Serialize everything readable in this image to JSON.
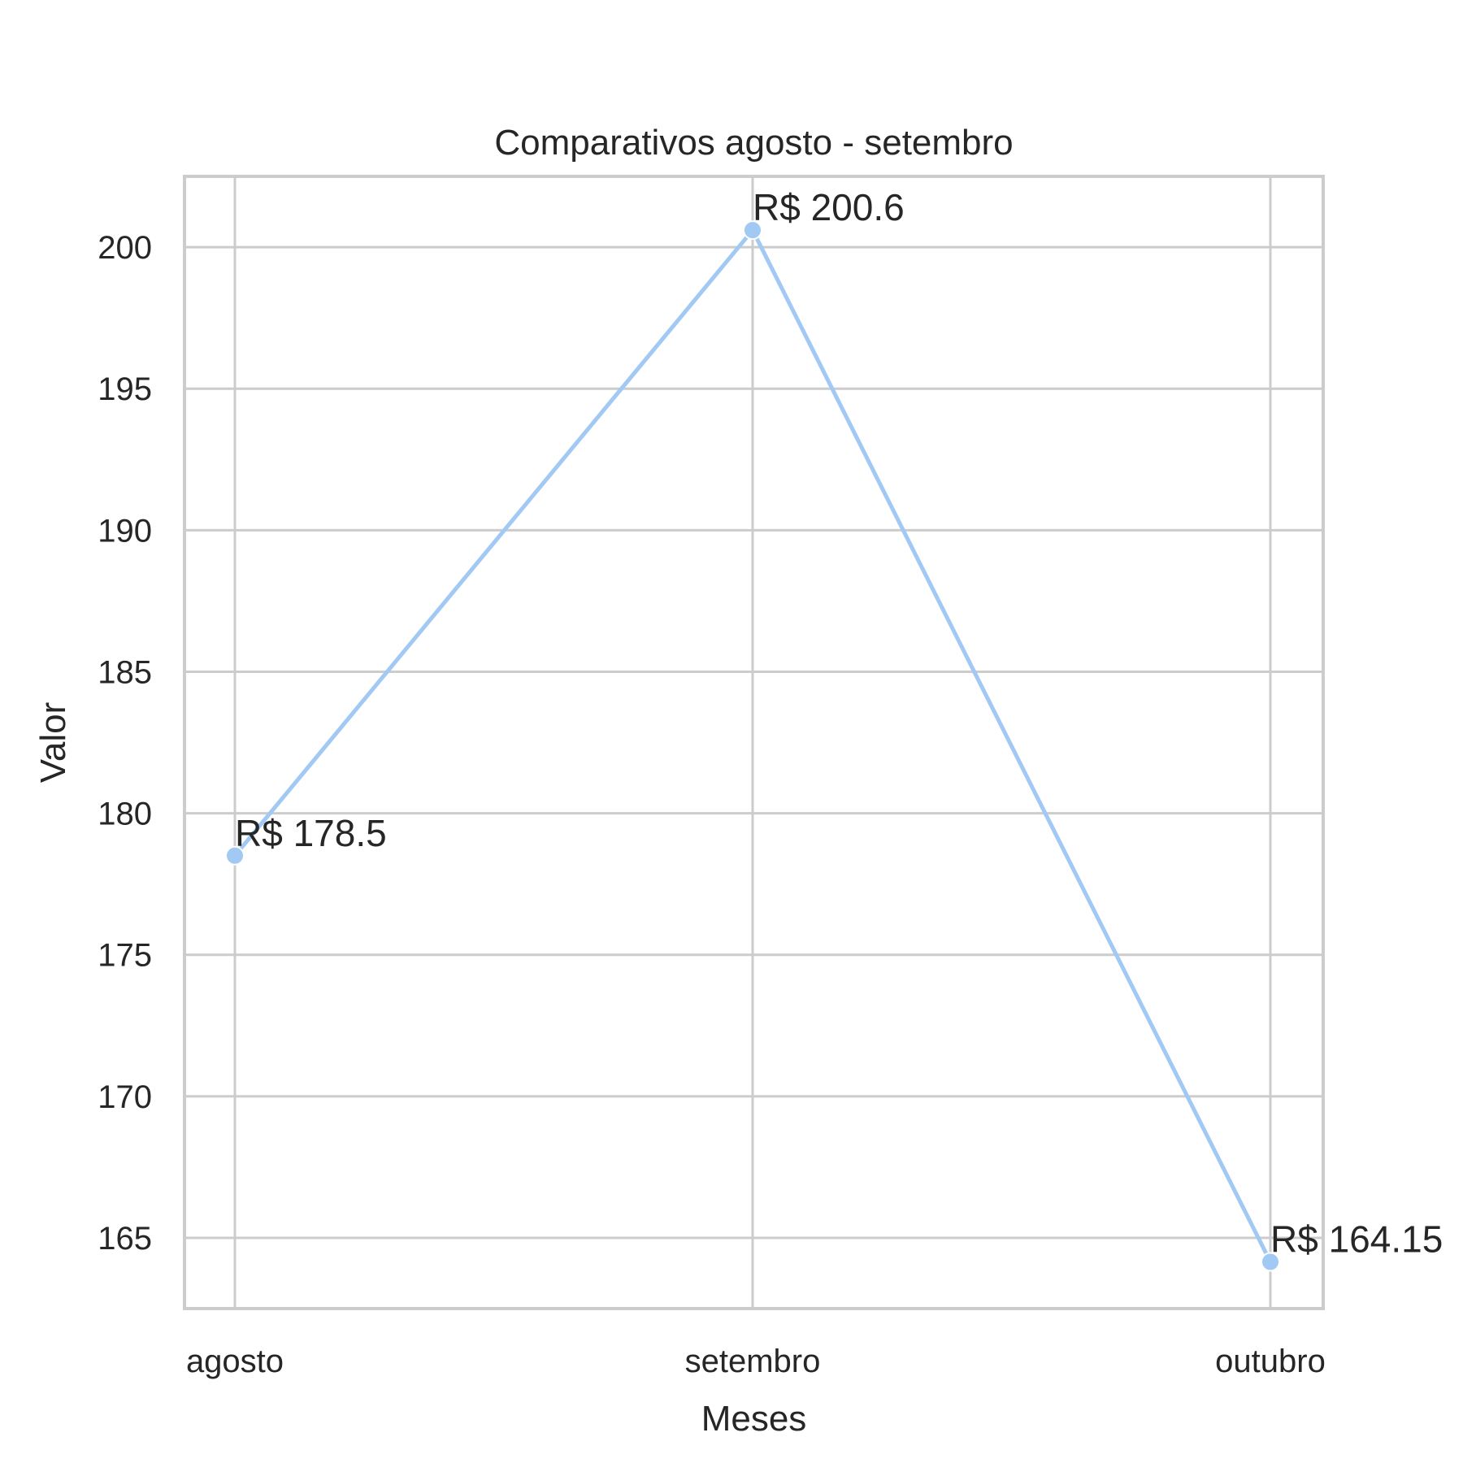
{
  "chart_data": {
    "type": "line",
    "title": "Comparativos agosto - setembro",
    "xlabel": "Meses",
    "ylabel": "Valor",
    "categories": [
      "agosto",
      "setembro",
      "outubro"
    ],
    "series": [
      {
        "values": [
          178.5,
          200.6,
          164.15
        ],
        "data_labels": [
          "R$ 178.5",
          "R$ 200.6",
          "R$ 164.15"
        ],
        "color": "#a1c9f4"
      }
    ],
    "yticks": [
      165,
      170,
      175,
      180,
      185,
      190,
      195,
      200
    ],
    "ylim": [
      162.5,
      202.5
    ],
    "grid": true,
    "legend": "none"
  }
}
